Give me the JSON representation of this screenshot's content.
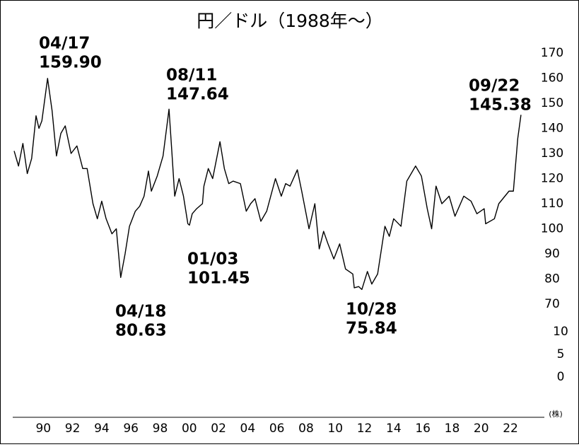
{
  "chart_data": {
    "type": "line",
    "title": "円／ドル（1988年〜）",
    "x": [
      1988.0,
      1988.3,
      1988.6,
      1988.9,
      1989.2,
      1989.5,
      1989.7,
      1989.9,
      1990.29,
      1990.6,
      1990.9,
      1991.2,
      1991.5,
      1991.9,
      1992.3,
      1992.7,
      1993.0,
      1993.4,
      1993.7,
      1994.0,
      1994.3,
      1994.7,
      1995.0,
      1995.3,
      1995.6,
      1995.9,
      1996.3,
      1996.6,
      1996.9,
      1997.2,
      1997.4,
      1997.8,
      1998.2,
      1998.61,
      1998.8,
      1999.0,
      1999.3,
      1999.6,
      1999.9,
      2000.01,
      2000.2,
      2000.5,
      2000.9,
      2001.0,
      2001.3,
      2001.6,
      2002.1,
      2002.4,
      2002.7,
      2003.0,
      2003.5,
      2003.9,
      2004.2,
      2004.5,
      2004.9,
      2005.3,
      2005.9,
      2006.3,
      2006.6,
      2006.9,
      2007.4,
      2007.7,
      2008.2,
      2008.6,
      2008.9,
      2009.2,
      2009.5,
      2009.9,
      2010.3,
      2010.7,
      2011.2,
      2011.3,
      2011.6,
      2011.82,
      2012.2,
      2012.5,
      2012.9,
      2013.4,
      2013.7,
      2014.0,
      2014.5,
      2014.9,
      2015.5,
      2015.9,
      2016.3,
      2016.6,
      2016.9,
      2017.3,
      2017.8,
      2018.2,
      2018.8,
      2019.3,
      2019.7,
      2020.2,
      2020.3,
      2020.9,
      2021.2,
      2021.9,
      2022.2,
      2022.5,
      2022.72
    ],
    "series": [
      {
        "name": "円／ドル",
        "color": "#000000",
        "values": [
          131,
          125,
          134,
          122,
          128,
          145,
          140,
          143,
          159.9,
          147,
          129,
          138,
          141,
          130,
          133,
          124,
          124,
          110,
          104,
          111,
          104,
          98,
          100,
          80.63,
          90,
          101,
          107,
          109,
          113,
          123,
          115,
          121,
          129,
          147.64,
          131,
          113,
          120,
          113,
          102,
          101.45,
          106,
          108,
          110,
          117,
          124,
          120,
          134.7,
          124,
          118,
          119,
          118,
          107,
          110,
          112,
          103,
          107,
          120,
          113,
          118,
          117,
          123.5,
          115,
          100,
          110,
          92,
          99,
          94,
          88,
          94,
          84,
          82,
          76.5,
          77,
          75.84,
          83,
          78,
          82,
          101,
          97,
          104,
          101,
          119,
          125,
          121,
          108,
          100,
          117,
          110,
          113,
          105,
          113,
          111,
          106,
          108,
          102,
          104,
          110,
          115,
          115,
          136,
          145.38
        ]
      }
    ],
    "xlim": [
      1988,
      2025
    ],
    "xticks": [
      {
        "value": 1990,
        "label": "90"
      },
      {
        "value": 1992,
        "label": "92"
      },
      {
        "value": 1994,
        "label": "94"
      },
      {
        "value": 1996,
        "label": "96"
      },
      {
        "value": 1998,
        "label": "98"
      },
      {
        "value": 2000,
        "label": "00"
      },
      {
        "value": 2002,
        "label": "02"
      },
      {
        "value": 2004,
        "label": "04"
      },
      {
        "value": 2006,
        "label": "06"
      },
      {
        "value": 2008,
        "label": "08"
      },
      {
        "value": 2010,
        "label": "10"
      },
      {
        "value": 2012,
        "label": "12"
      },
      {
        "value": 2014,
        "label": "14"
      },
      {
        "value": 2016,
        "label": "16"
      },
      {
        "value": 2018,
        "label": "18"
      },
      {
        "value": 2020,
        "label": "20"
      },
      {
        "value": 2022,
        "label": "22"
      }
    ],
    "ylim": [
      70,
      170
    ],
    "yticks": [
      70,
      80,
      90,
      100,
      110,
      120,
      130,
      140,
      150,
      160,
      170
    ],
    "y2lim": [
      0,
      10
    ],
    "y2ticks": [
      0,
      5,
      10
    ],
    "y2label": "(株)",
    "annotations": [
      {
        "date": "04/17",
        "label": "159.90"
      },
      {
        "date": "08/11",
        "label": "147.64"
      },
      {
        "date": "09/22",
        "label": "145.38"
      },
      {
        "date": "04/18",
        "label": "80.63"
      },
      {
        "date": "01/03",
        "label": "101.45"
      },
      {
        "date": "10/28",
        "label": "75.84"
      }
    ]
  }
}
